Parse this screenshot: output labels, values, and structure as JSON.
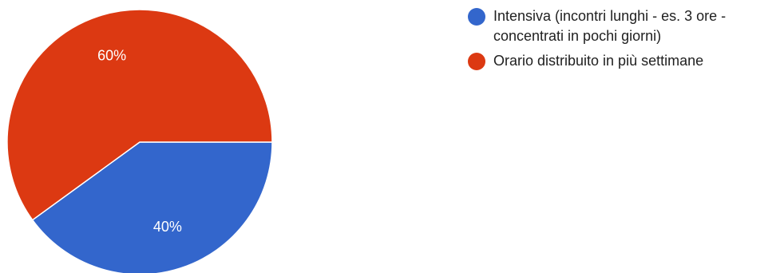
{
  "chart_data": {
    "type": "pie",
    "title": "",
    "categories": [
      "Intensiva (incontri lunghi - es. 3 ore - concentrati in pochi giorni)",
      "Orario distribuito in più settimane"
    ],
    "values": [
      40,
      60
    ],
    "value_labels": [
      "40%",
      "60%"
    ],
    "colors": [
      "#3366cc",
      "#dc3912"
    ],
    "legend": "right"
  },
  "legend": {
    "items": [
      {
        "label": "Intensiva (incontri lunghi - es. 3 ore - concentrati in pochi giorni)",
        "color": "#3366cc"
      },
      {
        "label": "Orario distribuito in più settimane",
        "color": "#dc3912"
      }
    ]
  }
}
